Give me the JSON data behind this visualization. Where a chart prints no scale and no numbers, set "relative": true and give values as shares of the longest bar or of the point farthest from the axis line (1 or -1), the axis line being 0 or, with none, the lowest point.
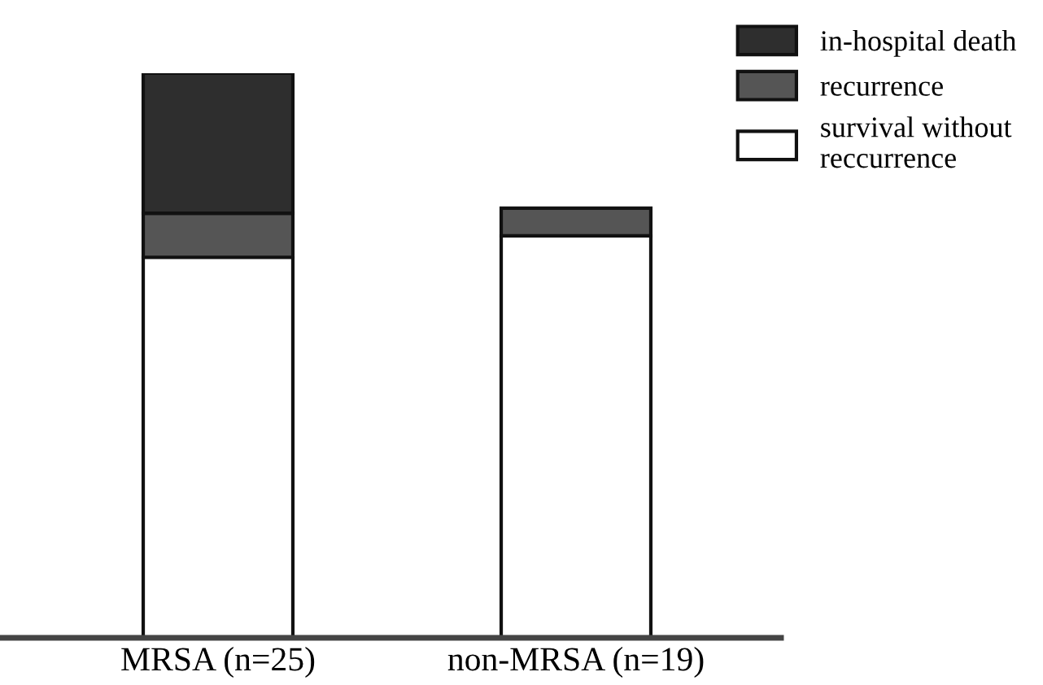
{
  "chart_data": {
    "type": "bar",
    "stacked": true,
    "relative": true,
    "legend": "top right",
    "grid": false,
    "categories": [
      "MRSA (n=25)",
      "non-MRSA (n=19)"
    ],
    "series": [
      {
        "name": "survival without\nreccurrence",
        "color": "#ffffff",
        "values": [
          0.674,
          0.712
        ]
      },
      {
        "name": "recurrence",
        "color": "#555555",
        "values": [
          0.078,
          0.049
        ]
      },
      {
        "name": "in-hospital death",
        "color": "#2e2e2e",
        "values": [
          0.248,
          0
        ]
      }
    ]
  }
}
